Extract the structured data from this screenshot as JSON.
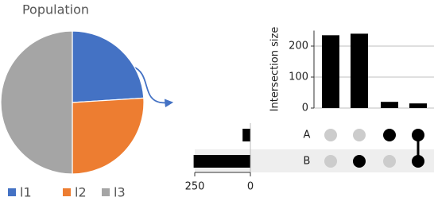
{
  "chart_data": [
    {
      "type": "pie",
      "title": "Population",
      "categories": [
        "l1",
        "l2",
        "l3"
      ],
      "values": [
        24,
        26,
        50
      ],
      "colors": [
        "#4472c4",
        "#ed7d31",
        "#a5a5a5"
      ]
    },
    {
      "type": "upset",
      "y_label": "Intersection size",
      "intersections": [
        235,
        240,
        20,
        15
      ],
      "ylim": [
        0,
        250
      ],
      "yticks": [
        0,
        100,
        200
      ],
      "grid": true,
      "bar_color": "#000000",
      "sets": [
        {
          "name": "A",
          "size": 35,
          "members": [
            false,
            false,
            true,
            true
          ]
        },
        {
          "name": "B",
          "size": 255,
          "members": [
            false,
            true,
            false,
            true
          ]
        }
      ],
      "set_xlim": [
        250,
        0
      ],
      "set_xticks": [
        250,
        0
      ]
    }
  ]
}
